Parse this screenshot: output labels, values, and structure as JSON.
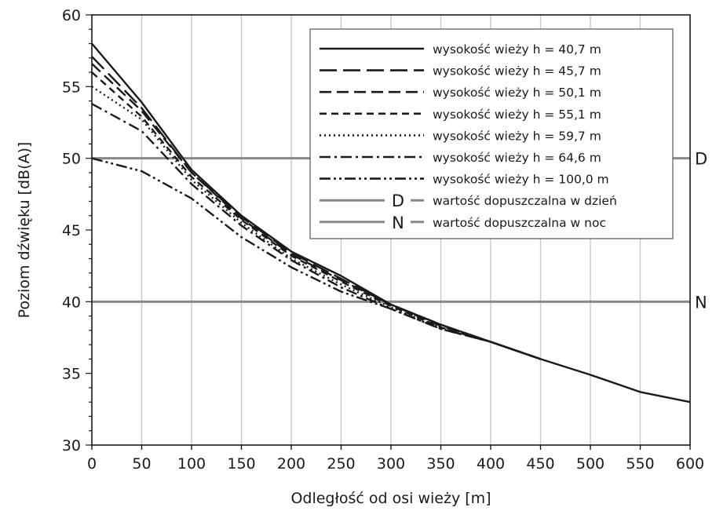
{
  "chart_data": {
    "type": "line",
    "title": "",
    "xlabel": "Odległość od osi wieży [m]",
    "ylabel": "Poziom dźwięku [dB(A)]",
    "xlim": [
      0,
      600
    ],
    "ylim": [
      30,
      60
    ],
    "xticks": [
      0,
      50,
      100,
      150,
      200,
      250,
      300,
      350,
      400,
      450,
      500,
      550,
      600
    ],
    "yticks": [
      30,
      35,
      40,
      45,
      50,
      55,
      60
    ],
    "grid": true,
    "legend_position": "top-right",
    "series": [
      {
        "name": "wysokość wieży h = 40,7 m",
        "dash": "solid",
        "x": [
          0,
          50,
          100,
          150,
          200,
          250,
          300,
          350,
          400,
          450,
          500,
          550,
          600
        ],
        "y": [
          58.0,
          53.9,
          49.2,
          46.0,
          43.5,
          41.8,
          39.8,
          38.4,
          37.2,
          36.0,
          34.9,
          33.7,
          33.0
        ]
      },
      {
        "name": "wysokość wieży h = 45,7 m",
        "dash": "long-dash",
        "x": [
          0,
          50,
          100,
          150,
          200,
          250,
          300,
          350,
          400,
          450
        ],
        "y": [
          57.1,
          53.5,
          49.0,
          45.9,
          43.4,
          41.6,
          39.8,
          38.4,
          37.2,
          36.0
        ]
      },
      {
        "name": "wysokość wieży h = 50,1 m",
        "dash": "dash",
        "x": [
          0,
          50,
          100,
          150,
          200,
          250,
          300,
          350,
          400,
          450
        ],
        "y": [
          56.6,
          53.3,
          49.0,
          45.8,
          43.3,
          41.5,
          39.8,
          38.3,
          37.2,
          36.0
        ]
      },
      {
        "name": "wysokość wieży h = 55,1 m",
        "dash": "short-dash",
        "x": [
          0,
          50,
          100,
          150,
          200,
          250,
          300,
          350,
          400,
          450
        ],
        "y": [
          56.0,
          52.9,
          48.7,
          45.7,
          43.2,
          41.4,
          39.7,
          38.2,
          37.2,
          36.0
        ]
      },
      {
        "name": "wysokość wieży h = 59,7 m",
        "dash": "dotted",
        "x": [
          0,
          50,
          100,
          150,
          200,
          250,
          300,
          350,
          400,
          450
        ],
        "y": [
          55.0,
          52.7,
          48.5,
          45.5,
          43.0,
          41.2,
          39.6,
          38.2,
          37.2,
          36.0
        ]
      },
      {
        "name": "wysokość wieży h = 64,6 m",
        "dash": "dash-dot",
        "x": [
          0,
          50,
          100,
          150,
          200,
          250,
          300,
          350,
          400,
          450
        ],
        "y": [
          53.8,
          51.9,
          48.2,
          45.3,
          42.9,
          41.0,
          39.5,
          38.1,
          37.2,
          36.0
        ]
      },
      {
        "name": "wysokość wieży h = 100,0 m",
        "dash": "dash-dot-dot",
        "x": [
          0,
          50,
          100,
          150,
          200,
          250,
          300,
          350,
          400,
          450
        ],
        "y": [
          50.0,
          49.1,
          47.2,
          44.5,
          42.4,
          40.7,
          39.5,
          38.1,
          37.2,
          36.0
        ]
      }
    ],
    "reference_lines": [
      {
        "name": "wartość dopuszczalna w dzień",
        "symbol": "D",
        "y": 50
      },
      {
        "name": "wartość dopuszczalna w noc",
        "symbol": "N",
        "y": 40
      }
    ],
    "colors": {
      "series": "#1a1a1a",
      "reference": "#888888",
      "grid": "#c8c8c8"
    }
  }
}
